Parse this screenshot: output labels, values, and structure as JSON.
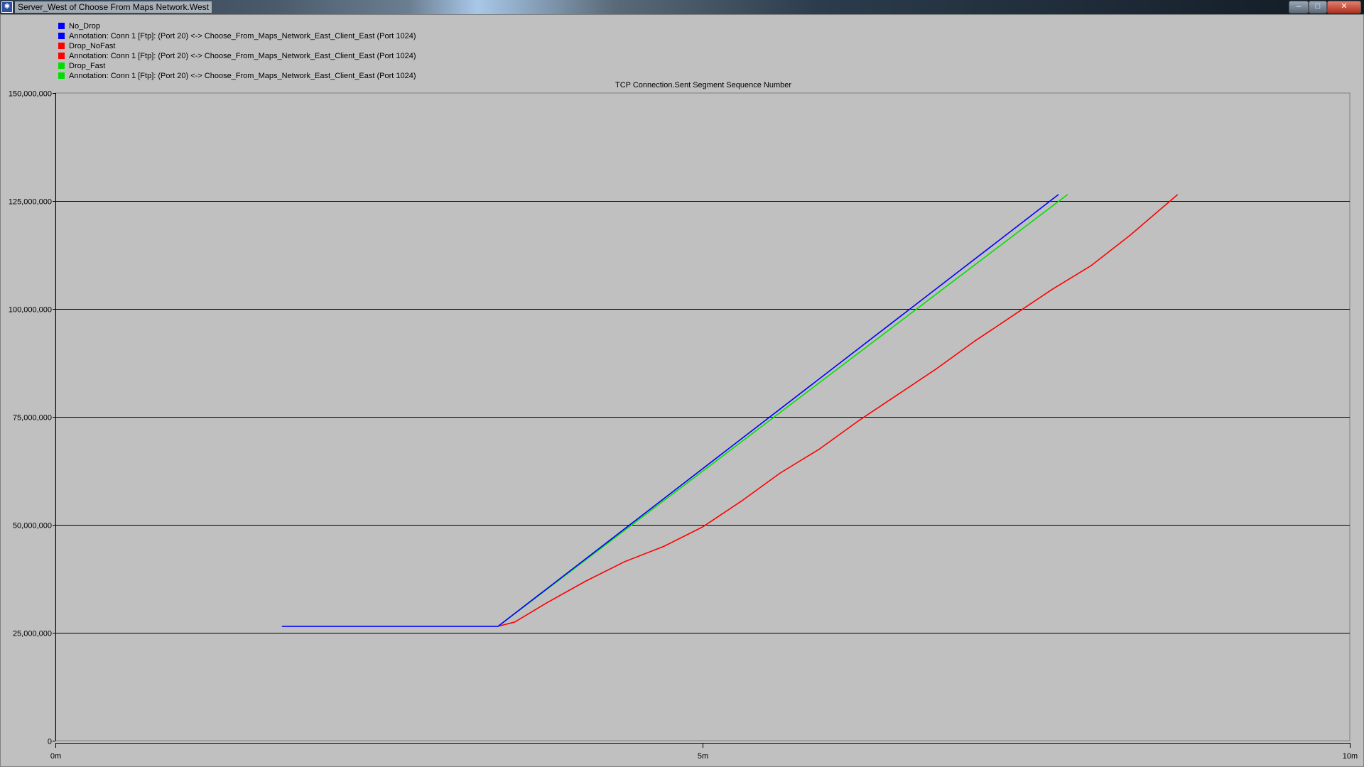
{
  "window": {
    "title": "Server_West of Choose From Maps Network.West",
    "icon": "app-icon",
    "buttons": {
      "minimize": "–",
      "maximize": "□",
      "close": "✕"
    }
  },
  "legend": {
    "items": [
      {
        "label": "No_Drop",
        "color": "#0000ff"
      },
      {
        "label": "Annotation: Conn 1 [Ftp]: (Port 20) <-> Choose_From_Maps_Network_East_Client_East (Port 1024)",
        "color": "#0000ff"
      },
      {
        "label": "Drop_NoFast",
        "color": "#ff0000"
      },
      {
        "label": "Annotation: Conn 1 [Ftp]: (Port 20) <-> Choose_From_Maps_Network_East_Client_East (Port 1024)",
        "color": "#ff0000"
      },
      {
        "label": "Drop_Fast",
        "color": "#00e000"
      },
      {
        "label": "Annotation: Conn 1 [Ftp]: (Port 20) <-> Choose_From_Maps_Network_East_Client_East (Port 1024)",
        "color": "#00e000"
      }
    ]
  },
  "chart_data": {
    "type": "line",
    "title": "TCP Connection.Sent Segment Sequence Number",
    "xlabel": "",
    "ylabel": "",
    "xlim": [
      0,
      10
    ],
    "ylim": [
      0,
      150000000
    ],
    "x_ticks": [
      {
        "value": 0,
        "label": "0m"
      },
      {
        "value": 5,
        "label": "5m"
      },
      {
        "value": 10,
        "label": "10m"
      }
    ],
    "y_ticks": [
      {
        "value": 0,
        "label": "0"
      },
      {
        "value": 25000000,
        "label": "25,000,000"
      },
      {
        "value": 50000000,
        "label": "50,000,000"
      },
      {
        "value": 75000000,
        "label": "75,000,000"
      },
      {
        "value": 100000000,
        "label": "100,000,000"
      },
      {
        "value": 125000000,
        "label": "125,000,000"
      },
      {
        "value": 150000000,
        "label": "150,000,000"
      }
    ],
    "grid": "horizontal",
    "legend_position": "top-left",
    "series": [
      {
        "name": "No_Drop",
        "color": "#0000ff",
        "x": [
          1.75,
          3.42,
          7.75
        ],
        "y": [
          26500000,
          26500000,
          126500000
        ]
      },
      {
        "name": "Drop_Fast",
        "color": "#00e000",
        "x": [
          3.42,
          7.82
        ],
        "y": [
          26500000,
          126500000
        ]
      },
      {
        "name": "Drop_NoFast",
        "color": "#ff0000",
        "x": [
          3.42,
          3.55,
          3.8,
          4.1,
          4.4,
          4.7,
          5.0,
          5.3,
          5.6,
          5.9,
          6.2,
          6.5,
          6.8,
          7.1,
          7.4,
          7.7,
          8.0,
          8.3,
          8.67
        ],
        "y": [
          26500000,
          27500000,
          32000000,
          37000000,
          41500000,
          45000000,
          49500000,
          55500000,
          62000000,
          67500000,
          74000000,
          80000000,
          86000000,
          92500000,
          98500000,
          104500000,
          110000000,
          117000000,
          126500000
        ]
      }
    ]
  }
}
